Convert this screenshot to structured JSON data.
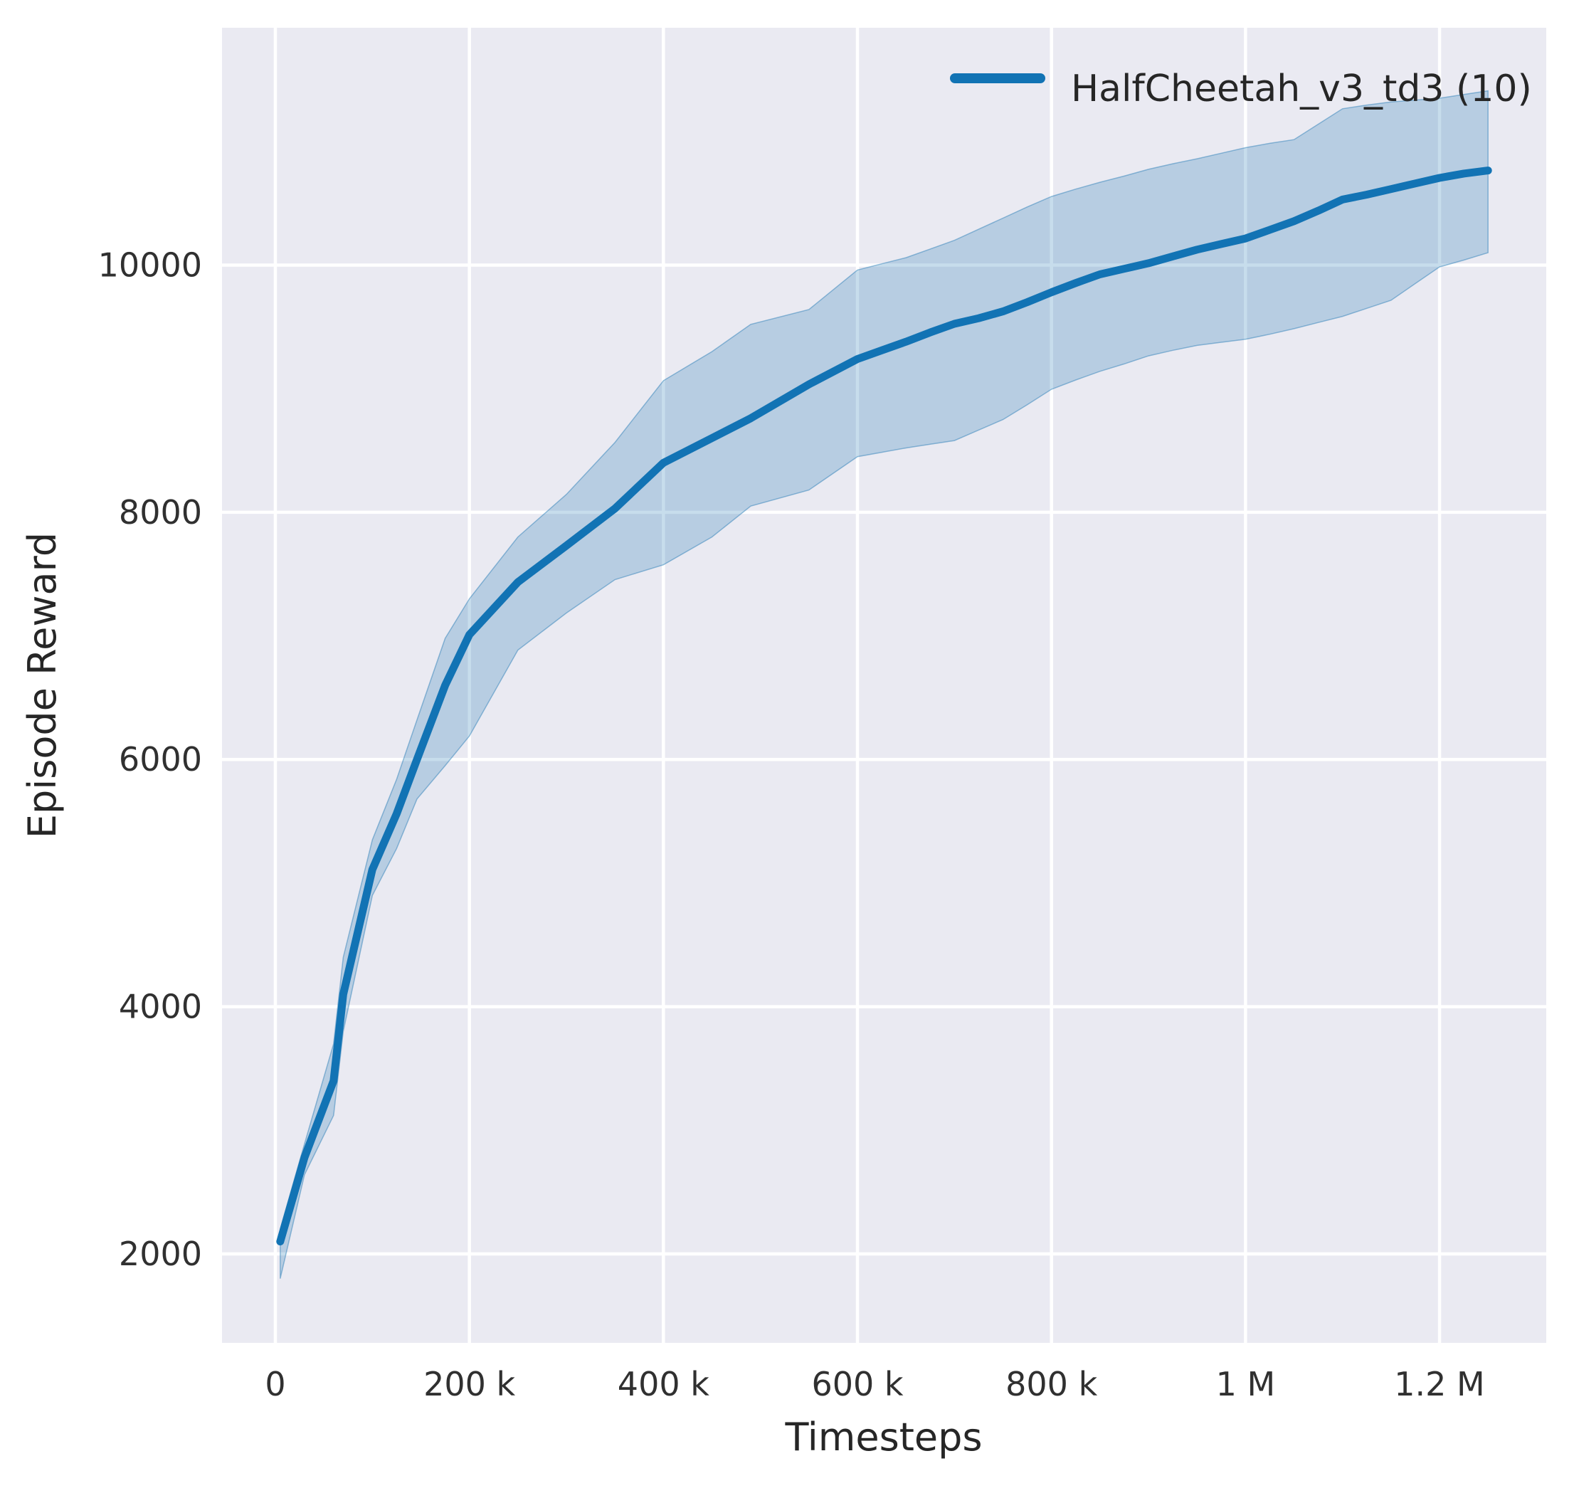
{
  "chart_data": {
    "type": "line",
    "title": "",
    "xlabel": "Timesteps",
    "ylabel": "Episode Reward",
    "grid": true,
    "legend_position": "upper right",
    "legend": [
      {
        "label": "HalfCheetah_v3_td3 (10)",
        "color": "#1273b4"
      }
    ],
    "xlim": [
      -55000,
      1310000
    ],
    "ylim": [
      1280,
      11920
    ],
    "x_ticks": [
      {
        "value": 0,
        "label": "0"
      },
      {
        "value": 200000,
        "label": "200 k"
      },
      {
        "value": 400000,
        "label": "400 k"
      },
      {
        "value": 600000,
        "label": "600 k"
      },
      {
        "value": 800000,
        "label": "800 k"
      },
      {
        "value": 1000000,
        "label": "1 M"
      },
      {
        "value": 1200000,
        "label": "1.2 M"
      }
    ],
    "y_ticks": [
      {
        "value": 2000,
        "label": "2000"
      },
      {
        "value": 4000,
        "label": "4000"
      },
      {
        "value": 6000,
        "label": "6000"
      },
      {
        "value": 8000,
        "label": "8000"
      },
      {
        "value": 10000,
        "label": "10000"
      }
    ],
    "colors": {
      "line": "#1273b4",
      "band_fill": "rgba(31,119,180,0.25)",
      "plot_background": "#eaeaf2",
      "gridline": "#ffffff",
      "text": "#262626"
    },
    "series": [
      {
        "name": "HalfCheetah_v3_td3 (10)",
        "x": [
          5000,
          30000,
          60000,
          70000,
          100000,
          125000,
          146000,
          175000,
          200000,
          250000,
          300000,
          350000,
          400000,
          450000,
          490000,
          550000,
          600000,
          625000,
          650000,
          675000,
          700000,
          725000,
          750000,
          775000,
          800000,
          825000,
          850000,
          875000,
          900000,
          925000,
          950000,
          975000,
          1000000,
          1025000,
          1050000,
          1075000,
          1100000,
          1125000,
          1150000,
          1175000,
          1200000,
          1225000,
          1250000
        ],
        "mean": [
          2100,
          2780,
          3400,
          4100,
          5110,
          5560,
          6000,
          6600,
          7010,
          7435,
          7730,
          8030,
          8400,
          8600,
          8760,
          9035,
          9240,
          9310,
          9380,
          9455,
          9525,
          9570,
          9625,
          9700,
          9780,
          9855,
          9925,
          9970,
          10015,
          10070,
          10125,
          10170,
          10215,
          10285,
          10355,
          10440,
          10530,
          10570,
          10615,
          10660,
          10705,
          10740,
          10765
        ],
        "lower": [
          1800,
          2640,
          3120,
          3800,
          4900,
          5280,
          5680,
          5950,
          6190,
          6885,
          7185,
          7455,
          7575,
          7800,
          8050,
          8180,
          8450,
          8485,
          8520,
          8550,
          8580,
          8665,
          8750,
          8870,
          8995,
          9070,
          9140,
          9200,
          9265,
          9310,
          9350,
          9375,
          9400,
          9440,
          9485,
          9535,
          9585,
          9650,
          9715,
          9850,
          9985,
          10040,
          10100
        ],
        "upper": [
          2200,
          2890,
          3700,
          4400,
          5350,
          5840,
          6320,
          6980,
          7300,
          7800,
          8145,
          8565,
          9065,
          9300,
          9520,
          9640,
          9960,
          10010,
          10060,
          10130,
          10200,
          10290,
          10380,
          10470,
          10555,
          10615,
          10670,
          10720,
          10775,
          10820,
          10860,
          10905,
          10950,
          10985,
          11015,
          11140,
          11265,
          11295,
          11320,
          11335,
          11350,
          11380,
          11410
        ]
      }
    ]
  }
}
